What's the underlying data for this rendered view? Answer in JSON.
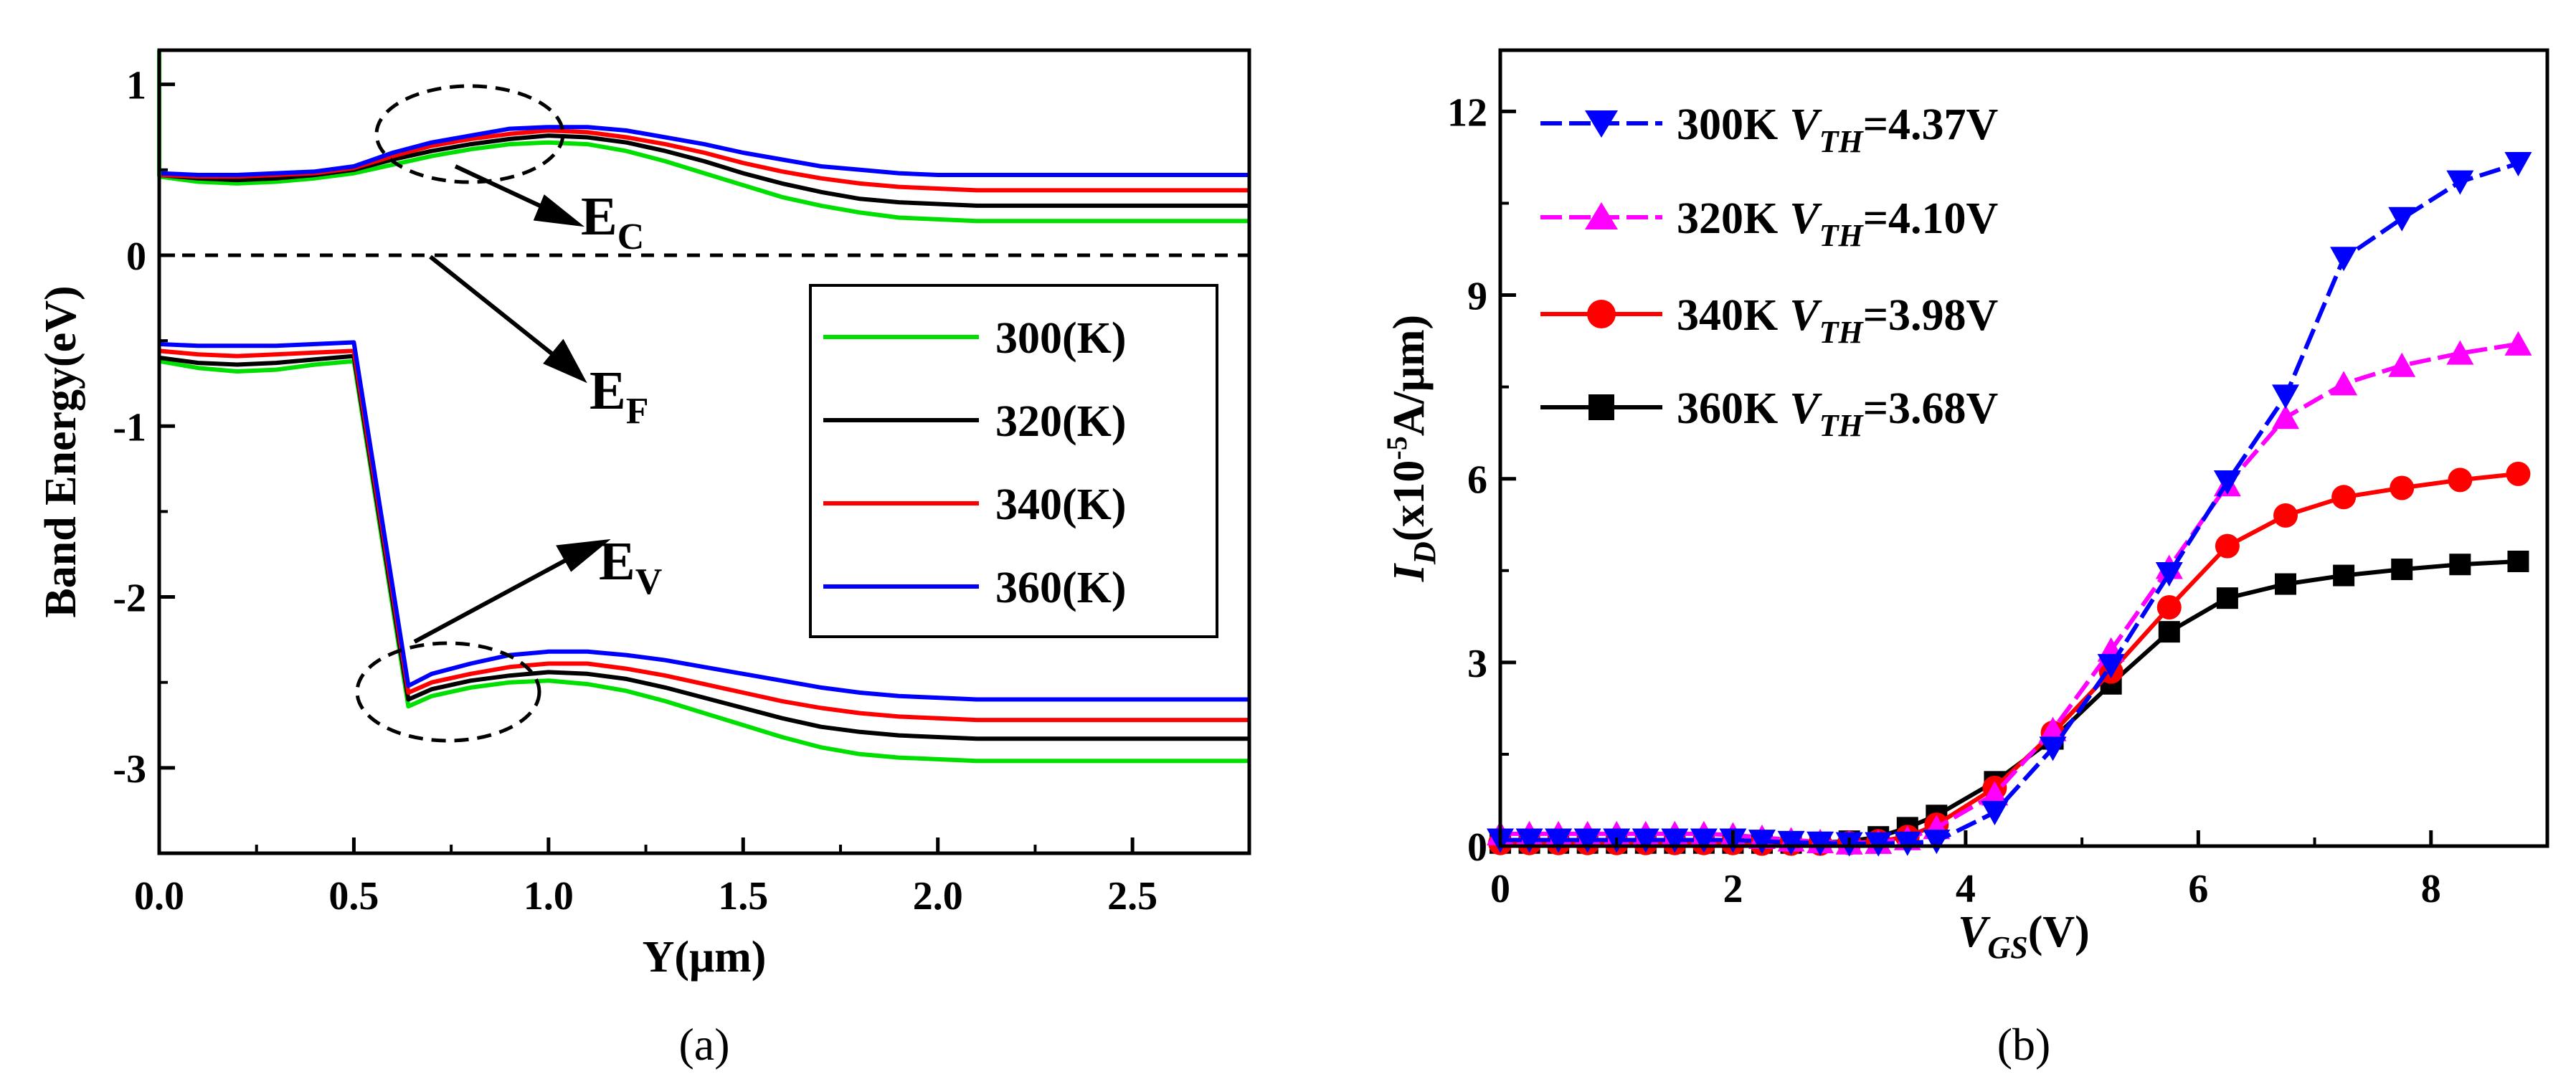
{
  "chart_data": [
    {
      "type": "line",
      "panel": "(a)",
      "title": "",
      "xlabel": "Y(μm)",
      "ylabel": "Band Energy(eV)",
      "xlim": [
        0,
        2.8
      ],
      "ylim": [
        -3.5,
        1.2
      ],
      "x_ticks": [
        "0.0",
        "0.5",
        "1.0",
        "1.5",
        "2.0",
        "2.5"
      ],
      "x_tick_values": [
        0,
        0.5,
        1.0,
        1.5,
        2.0,
        2.5
      ],
      "y_ticks": [
        "1",
        "0",
        "-1",
        "-2",
        "-3"
      ],
      "y_tick_values": [
        1,
        0,
        -1,
        -2,
        -3
      ],
      "legend_location": "center-right",
      "fermi_level": 0,
      "annotations": [
        {
          "text": "E",
          "sub": "C",
          "target": "conduction band peak near Y=0.8"
        },
        {
          "text": "E",
          "sub": "F",
          "target": "Fermi level dashed line"
        },
        {
          "text": "E",
          "sub": "V",
          "target": "valence band step near Y=0.7"
        }
      ],
      "x": [
        0,
        0.1,
        0.2,
        0.3,
        0.4,
        0.5,
        0.6,
        0.7,
        0.8,
        0.9,
        1.0,
        1.1,
        1.2,
        1.3,
        1.4,
        1.5,
        1.6,
        1.7,
        1.8,
        1.9,
        2.0,
        2.1,
        2.2,
        2.3,
        2.4,
        2.5,
        2.6,
        2.7,
        2.8
      ],
      "series": [
        {
          "name": "300(K)",
          "color": "#00e000",
          "ec": [
            0.46,
            0.43,
            0.42,
            0.43,
            0.45,
            0.48,
            0.53,
            0.58,
            0.62,
            0.65,
            0.66,
            0.65,
            0.61,
            0.55,
            0.48,
            0.41,
            0.34,
            0.29,
            0.25,
            0.22,
            0.21,
            0.2,
            0.2,
            0.2,
            0.2,
            0.2,
            0.2,
            0.2,
            0.2
          ],
          "ev_x": [
            0,
            0.1,
            0.2,
            0.3,
            0.4,
            0.5,
            0.64,
            0.7,
            0.8,
            0.9,
            1.0,
            1.1,
            1.2,
            1.3,
            1.4,
            1.5,
            1.6,
            1.7,
            1.8,
            1.9,
            2.0,
            2.1,
            2.2,
            2.3,
            2.4,
            2.5,
            2.6,
            2.7,
            2.8
          ],
          "ev": [
            -0.62,
            -0.66,
            -0.68,
            -0.67,
            -0.64,
            -0.62,
            -2.64,
            -2.58,
            -2.53,
            -2.5,
            -2.49,
            -2.51,
            -2.55,
            -2.61,
            -2.68,
            -2.75,
            -2.82,
            -2.88,
            -2.92,
            -2.94,
            -2.95,
            -2.96,
            -2.96,
            -2.96,
            -2.96,
            -2.96,
            -2.96,
            -2.96,
            -2.96
          ]
        },
        {
          "name": "320(K)",
          "color": "#000000",
          "ec": [
            0.47,
            0.45,
            0.44,
            0.45,
            0.47,
            0.5,
            0.56,
            0.61,
            0.65,
            0.68,
            0.7,
            0.69,
            0.66,
            0.61,
            0.55,
            0.48,
            0.42,
            0.37,
            0.33,
            0.31,
            0.3,
            0.29,
            0.29,
            0.29,
            0.29,
            0.29,
            0.29,
            0.29,
            0.29
          ],
          "ev_x": [
            0,
            0.1,
            0.2,
            0.3,
            0.4,
            0.5,
            0.64,
            0.7,
            0.8,
            0.9,
            1.0,
            1.1,
            1.2,
            1.3,
            1.4,
            1.5,
            1.6,
            1.7,
            1.8,
            1.9,
            2.0,
            2.1,
            2.2,
            2.3,
            2.4,
            2.5,
            2.6,
            2.7,
            2.8
          ],
          "ev": [
            -0.6,
            -0.63,
            -0.64,
            -0.63,
            -0.61,
            -0.59,
            -2.6,
            -2.54,
            -2.49,
            -2.46,
            -2.44,
            -2.45,
            -2.48,
            -2.53,
            -2.59,
            -2.65,
            -2.71,
            -2.76,
            -2.79,
            -2.81,
            -2.82,
            -2.83,
            -2.83,
            -2.83,
            -2.83,
            -2.83,
            -2.83,
            -2.83,
            -2.83
          ]
        },
        {
          "name": "340(K)",
          "color": "#ff0000",
          "ec": [
            0.47,
            0.46,
            0.46,
            0.47,
            0.48,
            0.51,
            0.58,
            0.64,
            0.68,
            0.71,
            0.73,
            0.72,
            0.69,
            0.65,
            0.6,
            0.54,
            0.49,
            0.45,
            0.42,
            0.4,
            0.39,
            0.38,
            0.38,
            0.38,
            0.38,
            0.38,
            0.38,
            0.38,
            0.38
          ],
          "ev_x": [
            0,
            0.1,
            0.2,
            0.3,
            0.4,
            0.5,
            0.64,
            0.7,
            0.8,
            0.9,
            1.0,
            1.1,
            1.2,
            1.3,
            1.4,
            1.5,
            1.6,
            1.7,
            1.8,
            1.9,
            2.0,
            2.1,
            2.2,
            2.3,
            2.4,
            2.5,
            2.6,
            2.7,
            2.8
          ],
          "ev": [
            -0.56,
            -0.58,
            -0.59,
            -0.58,
            -0.57,
            -0.56,
            -2.56,
            -2.5,
            -2.45,
            -2.41,
            -2.39,
            -2.39,
            -2.42,
            -2.46,
            -2.51,
            -2.56,
            -2.61,
            -2.65,
            -2.68,
            -2.7,
            -2.71,
            -2.72,
            -2.72,
            -2.72,
            -2.72,
            -2.72,
            -2.72,
            -2.72,
            -2.72
          ]
        },
        {
          "name": "360(K)",
          "color": "#0000ff",
          "ec": [
            0.48,
            0.47,
            0.47,
            0.48,
            0.49,
            0.52,
            0.6,
            0.66,
            0.7,
            0.74,
            0.75,
            0.75,
            0.73,
            0.69,
            0.65,
            0.6,
            0.56,
            0.52,
            0.5,
            0.48,
            0.47,
            0.47,
            0.47,
            0.47,
            0.47,
            0.47,
            0.47,
            0.47,
            0.47
          ],
          "ev_x": [
            0,
            0.1,
            0.2,
            0.3,
            0.4,
            0.5,
            0.64,
            0.7,
            0.8,
            0.9,
            1.0,
            1.1,
            1.2,
            1.3,
            1.4,
            1.5,
            1.6,
            1.7,
            1.8,
            1.9,
            2.0,
            2.1,
            2.2,
            2.3,
            2.4,
            2.5,
            2.6,
            2.7,
            2.8
          ],
          "ev": [
            -0.52,
            -0.53,
            -0.53,
            -0.53,
            -0.52,
            -0.51,
            -2.52,
            -2.45,
            -2.39,
            -2.34,
            -2.32,
            -2.32,
            -2.34,
            -2.37,
            -2.41,
            -2.45,
            -2.49,
            -2.53,
            -2.56,
            -2.58,
            -2.59,
            -2.6,
            -2.6,
            -2.6,
            -2.6,
            -2.6,
            -2.6,
            -2.6,
            -2.6
          ]
        }
      ]
    },
    {
      "type": "line",
      "panel": "(b)",
      "title": "",
      "xlabel_main": "V",
      "xlabel_sub": "GS",
      "xlabel_tail": "(V)",
      "ylabel_main": "I",
      "ylabel_sub": "D",
      "ylabel_tail_a": "(x10",
      "ylabel_sup": "-5",
      "ylabel_tail_b": "A/μm)",
      "xlim": [
        0,
        9
      ],
      "ylim": [
        0,
        13
      ],
      "x_ticks": [
        "0",
        "2",
        "4",
        "6",
        "8"
      ],
      "x_tick_values": [
        0,
        2,
        4,
        6,
        8
      ],
      "y_ticks": [
        "0",
        "3",
        "6",
        "9",
        "12"
      ],
      "y_tick_values": [
        0,
        3,
        6,
        9,
        12
      ],
      "legend_location": "top-left",
      "x": [
        0,
        0.25,
        0.5,
        0.75,
        1.0,
        1.25,
        1.5,
        1.75,
        2.0,
        2.25,
        2.5,
        2.75,
        3.0,
        3.25,
        3.5,
        3.75,
        4.25,
        4.75,
        5.25,
        5.75,
        6.25,
        6.75,
        7.25,
        7.75,
        8.25,
        8.75
      ],
      "series": [
        {
          "name": "300K",
          "vth_label": "V",
          "vth_sub": "TH",
          "vth_value": "=4.37V",
          "color": "#0000ff",
          "marker": "triangle-down",
          "values": [
            0.1,
            0.1,
            0.1,
            0.1,
            0.1,
            0.1,
            0.1,
            0.1,
            0.1,
            0.08,
            0.06,
            0.05,
            0.04,
            0.04,
            0.05,
            0.08,
            0.55,
            1.6,
            2.95,
            4.45,
            5.95,
            7.35,
            9.6,
            10.25,
            10.85,
            11.15
          ]
        },
        {
          "name": "320K",
          "vth_label": "V",
          "vth_sub": "TH",
          "vth_value": "=4.10V",
          "color": "#ff00ff",
          "marker": "triangle-up",
          "values": [
            0.2,
            0.2,
            0.2,
            0.2,
            0.2,
            0.2,
            0.2,
            0.2,
            0.18,
            0.14,
            0.1,
            0.07,
            0.05,
            0.06,
            0.12,
            0.3,
            0.85,
            1.9,
            3.2,
            4.55,
            5.9,
            7.0,
            7.55,
            7.85,
            8.05,
            8.2
          ]
        },
        {
          "name": "340K",
          "vth_label": "V",
          "vth_sub": "TH",
          "vth_value": "=3.98V",
          "color": "#ff0000",
          "marker": "circle",
          "values": [
            0.05,
            0.05,
            0.05,
            0.05,
            0.05,
            0.05,
            0.05,
            0.05,
            0.05,
            0.04,
            0.04,
            0.04,
            0.05,
            0.08,
            0.15,
            0.35,
            0.95,
            1.85,
            2.85,
            3.9,
            4.9,
            5.4,
            5.7,
            5.85,
            5.98,
            6.08
          ]
        },
        {
          "name": "360K",
          "vth_label": "V",
          "vth_sub": "TH",
          "vth_value": "=3.68V",
          "color": "#000000",
          "marker": "square",
          "values": [
            0.05,
            0.05,
            0.05,
            0.05,
            0.05,
            0.05,
            0.05,
            0.05,
            0.05,
            0.05,
            0.05,
            0.06,
            0.08,
            0.15,
            0.3,
            0.5,
            1.05,
            1.75,
            2.65,
            3.5,
            4.05,
            4.28,
            4.42,
            4.52,
            4.6,
            4.65
          ]
        }
      ]
    }
  ]
}
